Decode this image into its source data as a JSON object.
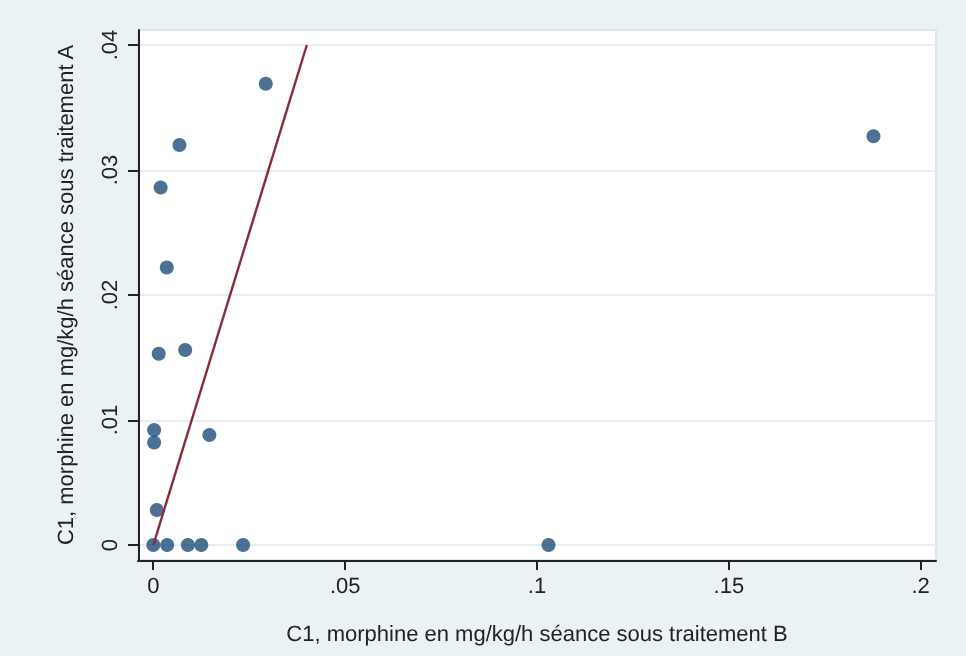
{
  "chart_data": {
    "type": "scatter",
    "xlabel": "C1, morphine en mg/kg/h séance sous traitement B",
    "ylabel": "C1, morphine en mg/kg/h séance sous traitement A",
    "xlim": [
      -0.004,
      0.204
    ],
    "ylim": [
      -0.0012,
      0.0412
    ],
    "xticks": [
      0,
      {
        "value": 0.05,
        "label": ".05"
      },
      {
        "value": 0.1,
        "label": ".1"
      },
      {
        "value": 0.15,
        "label": ".15"
      },
      {
        "value": 0.2,
        "label": ".2"
      }
    ],
    "yticks": [
      0,
      {
        "value": 0.01,
        "label": ".01"
      },
      {
        "value": 0.02,
        "label": ".02"
      },
      {
        "value": 0.03,
        "label": ".03"
      },
      {
        "value": 0.04,
        "label": ".04"
      }
    ],
    "grid": "y",
    "marker": "circle",
    "series": [
      {
        "color": "#1f4e79",
        "x": [
          0.0293,
          0.1877,
          0.0068,
          0.0019,
          0.0035,
          0.0014,
          0.0083,
          0.0002,
          0.0002,
          0.0146,
          0.0009,
          0,
          0.0036,
          0.009,
          0.0125,
          0.0234,
          0.103
        ],
        "values": [
          0.0369,
          0.0327,
          0.032,
          0.0286,
          0.0222,
          0.0153,
          0.0156,
          0.0092,
          0.0082,
          0.0088,
          0.0028,
          0,
          0,
          0,
          0,
          0,
          0
        ]
      },
      {
        "type": "line",
        "color": "#8b2a3c",
        "x": [
          0,
          0.04
        ],
        "values": [
          0,
          0.04
        ],
        "marker": "none"
      }
    ]
  }
}
